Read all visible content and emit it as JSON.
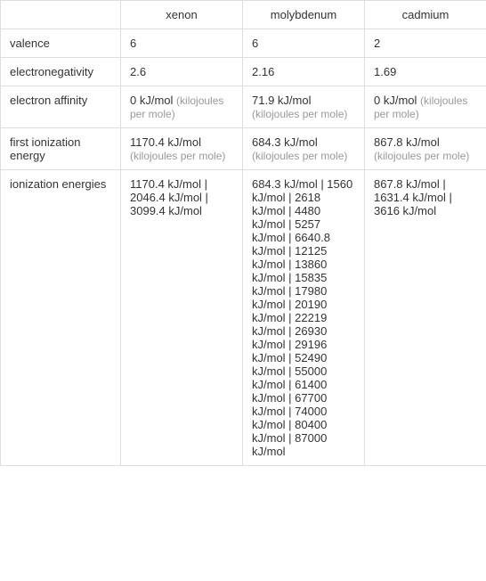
{
  "table": {
    "columns": [
      "xenon",
      "molybdenum",
      "cadmium"
    ],
    "rows": [
      {
        "label": "valence",
        "cells": [
          {
            "main": "6"
          },
          {
            "main": "6"
          },
          {
            "main": "2"
          }
        ]
      },
      {
        "label": "electronegativity",
        "cells": [
          {
            "main": "2.6"
          },
          {
            "main": "2.16"
          },
          {
            "main": "1.69"
          }
        ]
      },
      {
        "label": "electron affinity",
        "cells": [
          {
            "main": "0 kJ/mol",
            "sub": "(kilojoules per mole)"
          },
          {
            "main": "71.9 kJ/mol",
            "sub": "(kilojoules per mole)"
          },
          {
            "main": "0 kJ/mol",
            "sub": "(kilojoules per mole)"
          }
        ]
      },
      {
        "label": "first ionization energy",
        "cells": [
          {
            "main": "1170.4 kJ/mol",
            "sub": "(kilojoules per mole)"
          },
          {
            "main": "684.3 kJ/mol",
            "sub": "(kilojoules per mole)"
          },
          {
            "main": "867.8 kJ/mol",
            "sub": "(kilojoules per mole)"
          }
        ]
      },
      {
        "label": "ionization energies",
        "cells": [
          {
            "main": "1170.4 kJ/mol   |   2046.4 kJ/mol   |   3099.4 kJ/mol"
          },
          {
            "main": "684.3 kJ/mol   |   1560 kJ/mol   |   2618 kJ/mol   |   4480 kJ/mol   |   5257 kJ/mol   |   6640.8 kJ/mol   |   12125 kJ/mol   |   13860 kJ/mol   |   15835 kJ/mol   |   17980 kJ/mol   |   20190 kJ/mol   |   22219 kJ/mol   |   26930 kJ/mol   |   29196 kJ/mol   |   52490 kJ/mol   |   55000 kJ/mol   |   61400 kJ/mol   |   67700 kJ/mol   |   74000 kJ/mol   |   80400 kJ/mol   |   87000 kJ/mol"
          },
          {
            "main": "867.8 kJ/mol   |   1631.4 kJ/mol   |   3616 kJ/mol"
          }
        ]
      }
    ],
    "colors": {
      "border": "#dddddd",
      "text": "#333333",
      "sub_text": "#999999",
      "background": "#ffffff"
    },
    "fontsize": 13,
    "sub_fontsize": 12
  }
}
